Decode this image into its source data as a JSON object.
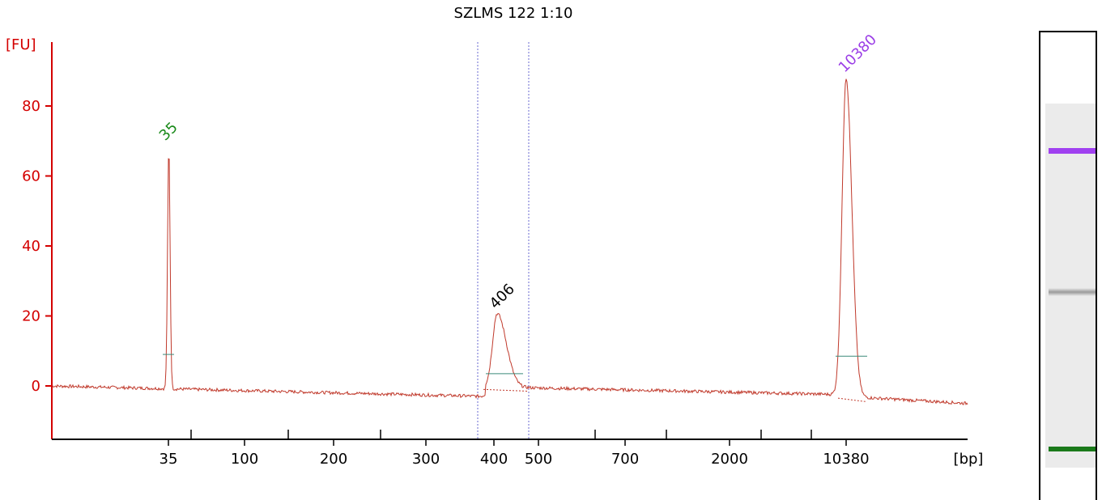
{
  "chart_data": {
    "type": "line",
    "title": "SZLMS 122 1:10",
    "ylabel": "[FU]",
    "xlabel": "[bp]",
    "ylim": [
      -15,
      95
    ],
    "yticks": [
      0,
      20,
      40,
      60,
      80
    ],
    "ytick_labels": [
      "0",
      "20",
      "40",
      "60",
      "80"
    ],
    "xtick_labels": [
      "35",
      "100",
      "200",
      "300",
      "400",
      "500",
      "700",
      "2000",
      "10380"
    ],
    "x_scale": "electropherogram (nonlinear bp)",
    "series": [
      {
        "values_description": "fluorescence trace",
        "x": [
          15,
          35,
          100,
          200,
          300,
          380,
          406,
          500,
          700,
          2000,
          10380,
          15000
        ],
        "y": [
          0,
          68,
          -1,
          -1.5,
          -2,
          -3,
          20,
          -0.5,
          -2,
          -2.5,
          88,
          -5
        ]
      }
    ],
    "peaks": [
      {
        "label": "35",
        "size_bp": 35,
        "fu": 68,
        "color": "#1a8a1a",
        "kind": "lower marker"
      },
      {
        "label": "406",
        "size_bp": 406,
        "fu": 20,
        "color": "#000000",
        "kind": "sample"
      },
      {
        "label": "10380",
        "size_bp": 10380,
        "fu": 88,
        "color": "#9b3ee6",
        "kind": "upper marker"
      }
    ],
    "region_bounds_bp": [
      380,
      470
    ],
    "colors": {
      "axis": "#d40000",
      "trace": "#c0392b",
      "region": "#6a6ad0",
      "baseline": "#3a8a7a"
    }
  },
  "gel": {
    "bands": [
      {
        "name": "upper-marker",
        "color": "#a040f0"
      },
      {
        "name": "sample",
        "color": "#9a9a9a"
      },
      {
        "name": "lower-marker",
        "color": "#1a7a1a"
      }
    ]
  }
}
